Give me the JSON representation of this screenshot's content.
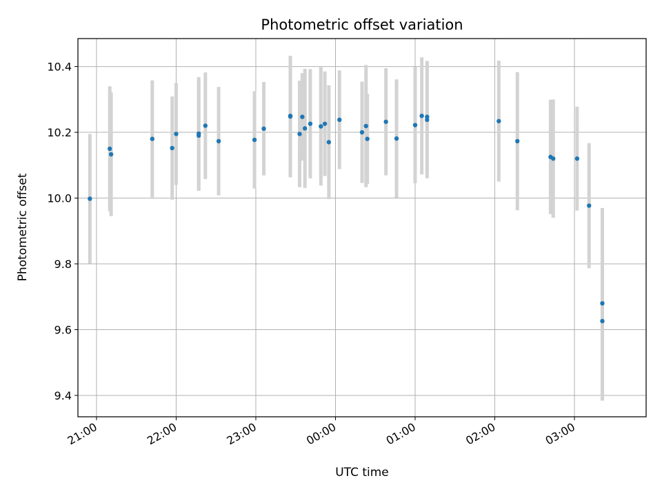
{
  "chart_data": {
    "type": "scatter",
    "title": "Photometric offset variation",
    "xlabel": "UTC time",
    "ylabel": "Photometric offset",
    "x_unit": "UTC time (HH:MM, evening into following morning)",
    "x_ticks": [
      "21:00",
      "22:00",
      "23:00",
      "00:00",
      "01:00",
      "02:00",
      "03:00"
    ],
    "y_ticks": [
      "9.4",
      "9.6",
      "9.8",
      "10.0",
      "10.2",
      "10.4"
    ],
    "xlim": [
      "20:46",
      "03:54"
    ],
    "ylim": [
      9.335,
      10.485
    ],
    "grid": true,
    "colors": {
      "points": "#1f77b4",
      "errorbars": "#d3d3d3",
      "grid": "#b0b0b0"
    },
    "points": [
      {
        "x": "20:55",
        "y": 9.998,
        "err": 0.197
      },
      {
        "x": "21:10",
        "y": 10.15,
        "err": 0.19
      },
      {
        "x": "21:11",
        "y": 10.133,
        "err": 0.188
      },
      {
        "x": "21:42",
        "y": 10.18,
        "err": 0.178
      },
      {
        "x": "21:57",
        "y": 10.152,
        "err": 0.157
      },
      {
        "x": "22:00",
        "y": 10.195,
        "err": 0.155
      },
      {
        "x": "22:17",
        "y": 10.19,
        "err": 0.168
      },
      {
        "x": "22:17",
        "y": 10.196,
        "err": 0.172
      },
      {
        "x": "22:22",
        "y": 10.22,
        "err": 0.162
      },
      {
        "x": "22:32",
        "y": 10.173,
        "err": 0.165
      },
      {
        "x": "22:59",
        "y": 10.177,
        "err": 0.148
      },
      {
        "x": "23:06",
        "y": 10.211,
        "err": 0.142
      },
      {
        "x": "23:26",
        "y": 10.248,
        "err": 0.185
      },
      {
        "x": "23:26",
        "y": 10.25,
        "err": 0.182
      },
      {
        "x": "23:33",
        "y": 10.195,
        "err": 0.162
      },
      {
        "x": "23:35",
        "y": 10.247,
        "err": 0.133
      },
      {
        "x": "23:37",
        "y": 10.212,
        "err": 0.181
      },
      {
        "x": "23:41",
        "y": 10.226,
        "err": 0.166
      },
      {
        "x": "23:49",
        "y": 10.218,
        "err": 0.18
      },
      {
        "x": "23:52",
        "y": 10.226,
        "err": 0.159
      },
      {
        "x": "23:55",
        "y": 10.17,
        "err": 0.173
      },
      {
        "x": "00:03",
        "y": 10.238,
        "err": 0.15
      },
      {
        "x": "00:20",
        "y": 10.2,
        "err": 0.154
      },
      {
        "x": "00:23",
        "y": 10.219,
        "err": 0.186
      },
      {
        "x": "00:24",
        "y": 10.18,
        "err": 0.137
      },
      {
        "x": "00:38",
        "y": 10.232,
        "err": 0.163
      },
      {
        "x": "00:46",
        "y": 10.181,
        "err": 0.18
      },
      {
        "x": "01:00",
        "y": 10.222,
        "err": 0.177
      },
      {
        "x": "01:05",
        "y": 10.25,
        "err": 0.178
      },
      {
        "x": "01:09",
        "y": 10.238,
        "err": 0.178
      },
      {
        "x": "01:09",
        "y": 10.247,
        "err": 0.17
      },
      {
        "x": "02:03",
        "y": 10.234,
        "err": 0.184
      },
      {
        "x": "02:17",
        "y": 10.173,
        "err": 0.21
      },
      {
        "x": "02:42",
        "y": 10.125,
        "err": 0.174
      },
      {
        "x": "02:44",
        "y": 10.12,
        "err": 0.18
      },
      {
        "x": "03:02",
        "y": 10.12,
        "err": 0.158
      },
      {
        "x": "03:11",
        "y": 9.977,
        "err": 0.19
      },
      {
        "x": "03:21",
        "y": 9.68,
        "err": 0.29
      },
      {
        "x": "03:21",
        "y": 9.626,
        "err": 0.242
      }
    ]
  }
}
